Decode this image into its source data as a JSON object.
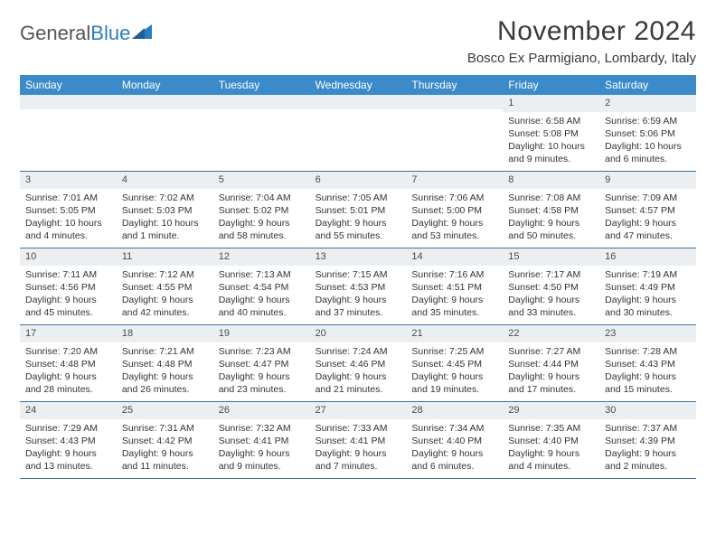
{
  "brand": {
    "name_a": "General",
    "name_b": "Blue"
  },
  "header": {
    "month_title": "November 2024",
    "location": "Bosco Ex Parmigiano, Lombardy, Italy"
  },
  "colors": {
    "header_bg": "#3b8bca",
    "header_text": "#ffffff",
    "daynum_bg": "#eceff1",
    "rule": "#3b6fa0",
    "text": "#333333",
    "brand_blue": "#2b7cc0"
  },
  "days_of_week": [
    "Sunday",
    "Monday",
    "Tuesday",
    "Wednesday",
    "Thursday",
    "Friday",
    "Saturday"
  ],
  "weeks": [
    [
      {
        "n": "",
        "sunrise": "",
        "sunset": "",
        "daylight": ""
      },
      {
        "n": "",
        "sunrise": "",
        "sunset": "",
        "daylight": ""
      },
      {
        "n": "",
        "sunrise": "",
        "sunset": "",
        "daylight": ""
      },
      {
        "n": "",
        "sunrise": "",
        "sunset": "",
        "daylight": ""
      },
      {
        "n": "",
        "sunrise": "",
        "sunset": "",
        "daylight": ""
      },
      {
        "n": "1",
        "sunrise": "Sunrise: 6:58 AM",
        "sunset": "Sunset: 5:08 PM",
        "daylight": "Daylight: 10 hours and 9 minutes."
      },
      {
        "n": "2",
        "sunrise": "Sunrise: 6:59 AM",
        "sunset": "Sunset: 5:06 PM",
        "daylight": "Daylight: 10 hours and 6 minutes."
      }
    ],
    [
      {
        "n": "3",
        "sunrise": "Sunrise: 7:01 AM",
        "sunset": "Sunset: 5:05 PM",
        "daylight": "Daylight: 10 hours and 4 minutes."
      },
      {
        "n": "4",
        "sunrise": "Sunrise: 7:02 AM",
        "sunset": "Sunset: 5:03 PM",
        "daylight": "Daylight: 10 hours and 1 minute."
      },
      {
        "n": "5",
        "sunrise": "Sunrise: 7:04 AM",
        "sunset": "Sunset: 5:02 PM",
        "daylight": "Daylight: 9 hours and 58 minutes."
      },
      {
        "n": "6",
        "sunrise": "Sunrise: 7:05 AM",
        "sunset": "Sunset: 5:01 PM",
        "daylight": "Daylight: 9 hours and 55 minutes."
      },
      {
        "n": "7",
        "sunrise": "Sunrise: 7:06 AM",
        "sunset": "Sunset: 5:00 PM",
        "daylight": "Daylight: 9 hours and 53 minutes."
      },
      {
        "n": "8",
        "sunrise": "Sunrise: 7:08 AM",
        "sunset": "Sunset: 4:58 PM",
        "daylight": "Daylight: 9 hours and 50 minutes."
      },
      {
        "n": "9",
        "sunrise": "Sunrise: 7:09 AM",
        "sunset": "Sunset: 4:57 PM",
        "daylight": "Daylight: 9 hours and 47 minutes."
      }
    ],
    [
      {
        "n": "10",
        "sunrise": "Sunrise: 7:11 AM",
        "sunset": "Sunset: 4:56 PM",
        "daylight": "Daylight: 9 hours and 45 minutes."
      },
      {
        "n": "11",
        "sunrise": "Sunrise: 7:12 AM",
        "sunset": "Sunset: 4:55 PM",
        "daylight": "Daylight: 9 hours and 42 minutes."
      },
      {
        "n": "12",
        "sunrise": "Sunrise: 7:13 AM",
        "sunset": "Sunset: 4:54 PM",
        "daylight": "Daylight: 9 hours and 40 minutes."
      },
      {
        "n": "13",
        "sunrise": "Sunrise: 7:15 AM",
        "sunset": "Sunset: 4:53 PM",
        "daylight": "Daylight: 9 hours and 37 minutes."
      },
      {
        "n": "14",
        "sunrise": "Sunrise: 7:16 AM",
        "sunset": "Sunset: 4:51 PM",
        "daylight": "Daylight: 9 hours and 35 minutes."
      },
      {
        "n": "15",
        "sunrise": "Sunrise: 7:17 AM",
        "sunset": "Sunset: 4:50 PM",
        "daylight": "Daylight: 9 hours and 33 minutes."
      },
      {
        "n": "16",
        "sunrise": "Sunrise: 7:19 AM",
        "sunset": "Sunset: 4:49 PM",
        "daylight": "Daylight: 9 hours and 30 minutes."
      }
    ],
    [
      {
        "n": "17",
        "sunrise": "Sunrise: 7:20 AM",
        "sunset": "Sunset: 4:48 PM",
        "daylight": "Daylight: 9 hours and 28 minutes."
      },
      {
        "n": "18",
        "sunrise": "Sunrise: 7:21 AM",
        "sunset": "Sunset: 4:48 PM",
        "daylight": "Daylight: 9 hours and 26 minutes."
      },
      {
        "n": "19",
        "sunrise": "Sunrise: 7:23 AM",
        "sunset": "Sunset: 4:47 PM",
        "daylight": "Daylight: 9 hours and 23 minutes."
      },
      {
        "n": "20",
        "sunrise": "Sunrise: 7:24 AM",
        "sunset": "Sunset: 4:46 PM",
        "daylight": "Daylight: 9 hours and 21 minutes."
      },
      {
        "n": "21",
        "sunrise": "Sunrise: 7:25 AM",
        "sunset": "Sunset: 4:45 PM",
        "daylight": "Daylight: 9 hours and 19 minutes."
      },
      {
        "n": "22",
        "sunrise": "Sunrise: 7:27 AM",
        "sunset": "Sunset: 4:44 PM",
        "daylight": "Daylight: 9 hours and 17 minutes."
      },
      {
        "n": "23",
        "sunrise": "Sunrise: 7:28 AM",
        "sunset": "Sunset: 4:43 PM",
        "daylight": "Daylight: 9 hours and 15 minutes."
      }
    ],
    [
      {
        "n": "24",
        "sunrise": "Sunrise: 7:29 AM",
        "sunset": "Sunset: 4:43 PM",
        "daylight": "Daylight: 9 hours and 13 minutes."
      },
      {
        "n": "25",
        "sunrise": "Sunrise: 7:31 AM",
        "sunset": "Sunset: 4:42 PM",
        "daylight": "Daylight: 9 hours and 11 minutes."
      },
      {
        "n": "26",
        "sunrise": "Sunrise: 7:32 AM",
        "sunset": "Sunset: 4:41 PM",
        "daylight": "Daylight: 9 hours and 9 minutes."
      },
      {
        "n": "27",
        "sunrise": "Sunrise: 7:33 AM",
        "sunset": "Sunset: 4:41 PM",
        "daylight": "Daylight: 9 hours and 7 minutes."
      },
      {
        "n": "28",
        "sunrise": "Sunrise: 7:34 AM",
        "sunset": "Sunset: 4:40 PM",
        "daylight": "Daylight: 9 hours and 6 minutes."
      },
      {
        "n": "29",
        "sunrise": "Sunrise: 7:35 AM",
        "sunset": "Sunset: 4:40 PM",
        "daylight": "Daylight: 9 hours and 4 minutes."
      },
      {
        "n": "30",
        "sunrise": "Sunrise: 7:37 AM",
        "sunset": "Sunset: 4:39 PM",
        "daylight": "Daylight: 9 hours and 2 minutes."
      }
    ]
  ]
}
